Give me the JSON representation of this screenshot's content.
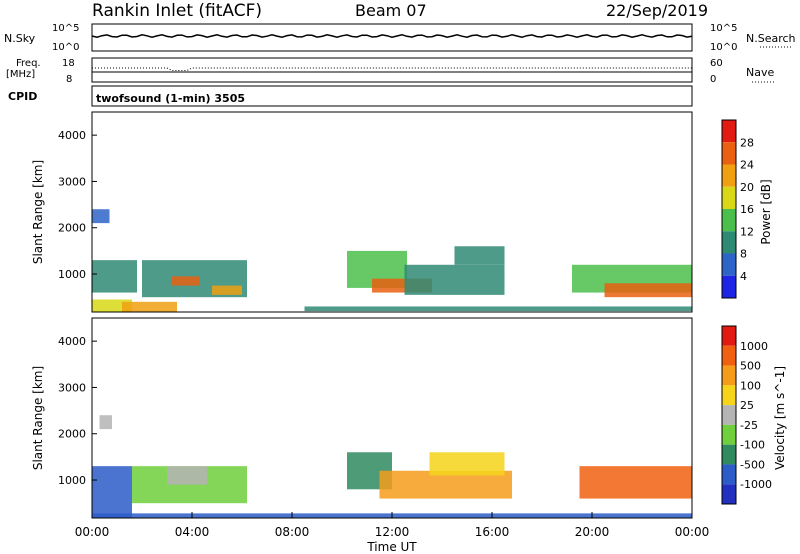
{
  "header": {
    "title": "Rankin Inlet (fitACF)",
    "beam": "Beam 07",
    "date": "22/Sep/2019"
  },
  "noise_panel": {
    "left_label": "N.Sky",
    "right_label": "N.Search",
    "left_ticks": [
      "10^5",
      "10^0"
    ],
    "right_ticks": [
      "10^5",
      "10^0"
    ]
  },
  "freq_panel": {
    "left_label_1": "Freq.",
    "left_label_2": "[MHz]",
    "right_label": "Nave",
    "left_ticks": [
      "18",
      "8"
    ],
    "right_ticks": [
      "60",
      "0"
    ]
  },
  "cpid": {
    "label": "CPID",
    "value": "twofsound (1-min) 3505"
  },
  "chart_data": [
    {
      "type": "heatmap",
      "quantity": "Power",
      "ylabel": "Slant Range [km]",
      "colorbar_label": "Power [dB]",
      "ylim": [
        180,
        4500
      ],
      "yticks": [
        "4000",
        "3000",
        "2000",
        "1000"
      ],
      "colorbar_ticks": [
        "28",
        "24",
        "20",
        "16",
        "12",
        "8",
        "4"
      ],
      "colorbar_colors": [
        "#1e24e6",
        "#2e64c8",
        "#2f8a74",
        "#4bbf4b",
        "#d8d816",
        "#f0a010",
        "#e86010",
        "#e11a12"
      ],
      "regions": [
        {
          "t0": 0.0,
          "t1": 1.6,
          "r0": 180,
          "r1": 450,
          "level": 4
        },
        {
          "t0": 1.2,
          "t1": 3.4,
          "r0": 180,
          "r1": 400,
          "level": 5
        },
        {
          "t0": 0.0,
          "t1": 1.8,
          "r0": 600,
          "r1": 1300,
          "level": 2
        },
        {
          "t0": 2.0,
          "t1": 6.2,
          "r0": 500,
          "r1": 1300,
          "level": 2
        },
        {
          "t0": 3.2,
          "t1": 4.3,
          "r0": 750,
          "r1": 950,
          "level": 6
        },
        {
          "t0": 4.8,
          "t1": 6.0,
          "r0": 550,
          "r1": 750,
          "level": 5
        },
        {
          "t0": 10.2,
          "t1": 12.6,
          "r0": 700,
          "r1": 1500,
          "level": 3
        },
        {
          "t0": 11.2,
          "t1": 13.6,
          "r0": 600,
          "r1": 900,
          "level": 6
        },
        {
          "t0": 12.5,
          "t1": 16.5,
          "r0": 550,
          "r1": 1200,
          "level": 2
        },
        {
          "t0": 14.5,
          "t1": 16.5,
          "r0": 1200,
          "r1": 1600,
          "level": 2
        },
        {
          "t0": 19.2,
          "t1": 24.0,
          "r0": 600,
          "r1": 1200,
          "level": 3
        },
        {
          "t0": 20.5,
          "t1": 24.0,
          "r0": 500,
          "r1": 800,
          "level": 6
        },
        {
          "t0": 0.0,
          "t1": 0.7,
          "r0": 2100,
          "r1": 2400,
          "level": 1
        },
        {
          "t0": 8.5,
          "t1": 24.0,
          "r0": 200,
          "r1": 300,
          "level": 2
        }
      ]
    },
    {
      "type": "heatmap",
      "quantity": "Velocity",
      "ylabel": "Slant Range [km]",
      "colorbar_label": "Velocity [m s^-1]",
      "ylim": [
        180,
        4500
      ],
      "yticks": [
        "4000",
        "3000",
        "2000",
        "1000"
      ],
      "colorbar_ticks": [
        "1000",
        "500",
        "100",
        "25",
        "-25",
        "-100",
        "-500",
        "-1000"
      ],
      "colorbar_colors": [
        "#2230c0",
        "#2c5cc8",
        "#2f8a60",
        "#6fcf3c",
        "#b4b4b4",
        "#f5d41a",
        "#f59c1a",
        "#f06010",
        "#e11a12"
      ],
      "regions": [
        {
          "t0": 0.0,
          "t1": 1.6,
          "r0": 180,
          "r1": 1300,
          "level": 1
        },
        {
          "t0": 1.6,
          "t1": 6.2,
          "r0": 500,
          "r1": 1300,
          "level": 3
        },
        {
          "t0": 3.0,
          "t1": 4.6,
          "r0": 900,
          "r1": 1300,
          "level": 4
        },
        {
          "t0": 10.2,
          "t1": 12.0,
          "r0": 800,
          "r1": 1600,
          "level": 2
        },
        {
          "t0": 11.5,
          "t1": 16.8,
          "r0": 600,
          "r1": 1200,
          "level": 6
        },
        {
          "t0": 13.5,
          "t1": 16.5,
          "r0": 1100,
          "r1": 1600,
          "level": 5
        },
        {
          "t0": 19.5,
          "t1": 24.0,
          "r0": 600,
          "r1": 1300,
          "level": 7
        },
        {
          "t0": 0.3,
          "t1": 0.8,
          "r0": 2100,
          "r1": 2400,
          "level": 4
        },
        {
          "t0": 0.0,
          "t1": 24.0,
          "r0": 180,
          "r1": 280,
          "level": 1
        }
      ]
    }
  ],
  "xaxis": {
    "label": "Time UT",
    "ticks": [
      "00:00",
      "04:00",
      "08:00",
      "12:00",
      "16:00",
      "20:00",
      "00:00"
    ]
  }
}
